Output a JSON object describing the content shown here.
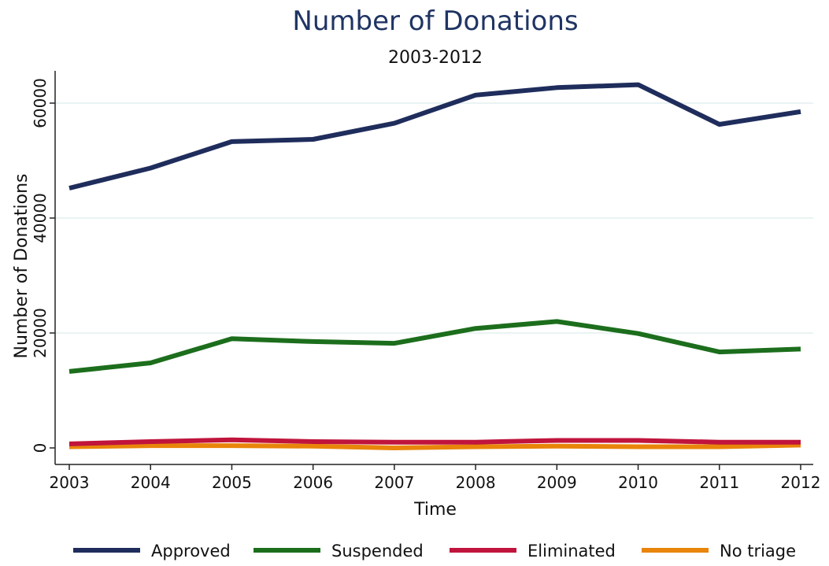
{
  "chart_data": {
    "type": "line",
    "title": "Number of Donations",
    "subtitle": "2003-2012",
    "xlabel": "Time",
    "ylabel": "Number of Donations",
    "x": [
      2003,
      2004,
      2005,
      2006,
      2007,
      2008,
      2009,
      2010,
      2011,
      2012
    ],
    "xlim": [
      2003,
      2012
    ],
    "ylim": [
      -2500,
      65000
    ],
    "yticks": [
      0,
      20000,
      40000,
      60000
    ],
    "grid": true,
    "legend_position": "bottom",
    "series": [
      {
        "name": "Approved",
        "color": "#1f2d5c",
        "values": [
          45200,
          48700,
          53300,
          53700,
          56500,
          61400,
          62700,
          63200,
          56300,
          58500
        ]
      },
      {
        "name": "Suspended",
        "color": "#1c6e1c",
        "values": [
          13300,
          14800,
          19000,
          18500,
          18200,
          20800,
          22000,
          19900,
          16700,
          17200
        ]
      },
      {
        "name": "Eliminated",
        "color": "#c0143c",
        "values": [
          700,
          1100,
          1400,
          1100,
          1000,
          1000,
          1300,
          1300,
          1000,
          1000
        ]
      },
      {
        "name": "No triage",
        "color": "#e8850a",
        "values": [
          200,
          400,
          400,
          300,
          0,
          200,
          300,
          200,
          200,
          500
        ]
      }
    ]
  }
}
